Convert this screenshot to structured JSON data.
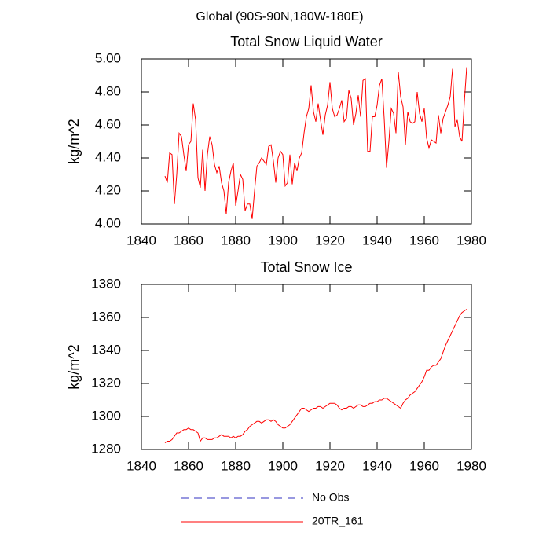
{
  "title": "Global (90S-90N,180W-180E)",
  "chart_data": [
    {
      "type": "line",
      "title": "Total Snow Liquid Water",
      "ylabel": "kg/m^2",
      "x": [
        1850,
        1851,
        1852,
        1853,
        1854,
        1855,
        1856,
        1857,
        1858,
        1859,
        1860,
        1861,
        1862,
        1863,
        1864,
        1865,
        1866,
        1867,
        1868,
        1869,
        1870,
        1871,
        1872,
        1873,
        1874,
        1875,
        1876,
        1877,
        1878,
        1879,
        1880,
        1881,
        1882,
        1883,
        1884,
        1885,
        1886,
        1887,
        1888,
        1889,
        1890,
        1891,
        1892,
        1893,
        1894,
        1895,
        1896,
        1897,
        1898,
        1899,
        1900,
        1901,
        1902,
        1903,
        1904,
        1905,
        1906,
        1907,
        1908,
        1909,
        1910,
        1911,
        1912,
        1913,
        1914,
        1915,
        1916,
        1917,
        1918,
        1919,
        1920,
        1921,
        1922,
        1923,
        1924,
        1925,
        1926,
        1927,
        1928,
        1929,
        1930,
        1931,
        1932,
        1933,
        1934,
        1935,
        1936,
        1937,
        1938,
        1939,
        1940,
        1941,
        1942,
        1943,
        1944,
        1945,
        1946,
        1947,
        1948,
        1949,
        1950,
        1951,
        1952,
        1953,
        1954,
        1955,
        1956,
        1957,
        1958,
        1959,
        1960,
        1961,
        1962,
        1963,
        1964,
        1965,
        1966,
        1967,
        1968,
        1969,
        1970,
        1971,
        1972,
        1973,
        1974,
        1975,
        1976,
        1977,
        1978
      ],
      "series": [
        {
          "color": "#ff0000",
          "values": [
            4.29,
            4.25,
            4.43,
            4.42,
            4.12,
            4.3,
            4.55,
            4.53,
            4.42,
            4.32,
            4.48,
            4.5,
            4.73,
            4.63,
            4.28,
            4.22,
            4.45,
            4.2,
            4.42,
            4.53,
            4.48,
            4.36,
            4.31,
            4.35,
            4.25,
            4.2,
            4.06,
            4.25,
            4.32,
            4.37,
            4.11,
            4.2,
            4.3,
            4.27,
            4.08,
            4.12,
            4.12,
            4.03,
            4.2,
            4.35,
            4.37,
            4.4,
            4.38,
            4.36,
            4.47,
            4.48,
            4.38,
            4.25,
            4.4,
            4.44,
            4.42,
            4.23,
            4.25,
            4.42,
            4.24,
            4.37,
            4.32,
            4.4,
            4.43,
            4.55,
            4.65,
            4.7,
            4.84,
            4.68,
            4.62,
            4.73,
            4.63,
            4.54,
            4.66,
            4.72,
            4.86,
            4.7,
            4.65,
            4.66,
            4.7,
            4.75,
            4.62,
            4.64,
            4.81,
            4.76,
            4.6,
            4.67,
            4.78,
            4.65,
            4.87,
            4.88,
            4.44,
            4.44,
            4.65,
            4.65,
            4.72,
            4.84,
            4.88,
            4.64,
            4.34,
            4.5,
            4.7,
            4.67,
            4.55,
            4.92,
            4.77,
            4.71,
            4.48,
            4.68,
            4.62,
            4.61,
            4.62,
            4.8,
            4.67,
            4.62,
            4.7,
            4.52,
            4.46,
            4.51,
            4.5,
            4.49,
            4.66,
            4.55,
            4.64,
            4.68,
            4.72,
            4.77,
            4.94,
            4.59,
            4.63,
            4.53,
            4.5,
            4.74,
            4.95
          ]
        }
      ],
      "xlim": [
        1840,
        1980
      ],
      "xticks": [
        1840,
        1860,
        1880,
        1900,
        1920,
        1940,
        1960,
        1980
      ],
      "ylim": [
        4,
        5
      ],
      "yticks": [
        {
          "value": 4,
          "label": "4.00"
        },
        {
          "value": 4.2,
          "label": "4.20"
        },
        {
          "value": 4.4,
          "label": "4.40"
        },
        {
          "value": 4.6,
          "label": "4.60"
        },
        {
          "value": 4.8,
          "label": "4.80"
        },
        {
          "value": 5,
          "label": "5.00"
        }
      ]
    },
    {
      "type": "line",
      "title": "Total Snow Ice",
      "ylabel": "kg/m^2",
      "x": [
        1850,
        1851,
        1852,
        1853,
        1854,
        1855,
        1856,
        1857,
        1858,
        1859,
        1860,
        1861,
        1862,
        1863,
        1864,
        1865,
        1866,
        1867,
        1868,
        1869,
        1870,
        1871,
        1872,
        1873,
        1874,
        1875,
        1876,
        1877,
        1878,
        1879,
        1880,
        1881,
        1882,
        1883,
        1884,
        1885,
        1886,
        1887,
        1888,
        1889,
        1890,
        1891,
        1892,
        1893,
        1894,
        1895,
        1896,
        1897,
        1898,
        1899,
        1900,
        1901,
        1902,
        1903,
        1904,
        1905,
        1906,
        1907,
        1908,
        1909,
        1910,
        1911,
        1912,
        1913,
        1914,
        1915,
        1916,
        1917,
        1918,
        1919,
        1920,
        1921,
        1922,
        1923,
        1924,
        1925,
        1926,
        1927,
        1928,
        1929,
        1930,
        1931,
        1932,
        1933,
        1934,
        1935,
        1936,
        1937,
        1938,
        1939,
        1940,
        1941,
        1942,
        1943,
        1944,
        1945,
        1946,
        1947,
        1948,
        1949,
        1950,
        1951,
        1952,
        1953,
        1954,
        1955,
        1956,
        1957,
        1958,
        1959,
        1960,
        1961,
        1962,
        1963,
        1964,
        1965,
        1966,
        1967,
        1968,
        1969,
        1970,
        1971,
        1972,
        1973,
        1974,
        1975,
        1976,
        1977,
        1978
      ],
      "series": [
        {
          "color": "#ff0000",
          "values": [
            1284,
            1285,
            1285,
            1286,
            1288,
            1290,
            1290,
            1291,
            1292,
            1292,
            1293,
            1292,
            1292,
            1291,
            1290,
            1285,
            1287,
            1287,
            1286,
            1286,
            1286,
            1287,
            1287,
            1288,
            1289,
            1288,
            1288,
            1288,
            1287,
            1288,
            1287,
            1288,
            1288,
            1289,
            1291,
            1292,
            1294,
            1295,
            1296,
            1297,
            1297,
            1296,
            1297,
            1298,
            1298,
            1297,
            1298,
            1297,
            1295,
            1294,
            1293,
            1293,
            1294,
            1295,
            1297,
            1299,
            1301,
            1303,
            1305,
            1305,
            1304,
            1303,
            1304,
            1305,
            1305,
            1306,
            1306,
            1305,
            1306,
            1307,
            1308,
            1308,
            1308,
            1307,
            1305,
            1304,
            1305,
            1305,
            1306,
            1306,
            1305,
            1306,
            1307,
            1307,
            1306,
            1306,
            1307,
            1308,
            1308,
            1309,
            1309,
            1310,
            1310,
            1311,
            1311,
            1310,
            1309,
            1308,
            1307,
            1306,
            1305,
            1308,
            1310,
            1311,
            1313,
            1314,
            1315,
            1317,
            1319,
            1321,
            1324,
            1328,
            1328,
            1330,
            1331,
            1331,
            1333,
            1335,
            1339,
            1343,
            1346,
            1349,
            1352,
            1355,
            1358,
            1361,
            1363,
            1364,
            1365
          ]
        }
      ],
      "xlim": [
        1840,
        1980
      ],
      "xticks": [
        1840,
        1860,
        1880,
        1900,
        1920,
        1940,
        1960,
        1980
      ],
      "ylim": [
        1280,
        1380
      ],
      "yticks": [
        1280,
        1300,
        1320,
        1340,
        1360,
        1380
      ]
    }
  ],
  "legend": [
    {
      "name": "No Obs",
      "color": "#3030c0",
      "dash": true
    },
    {
      "name": "20TR_161",
      "color": "#ff0000",
      "dash": false
    }
  ]
}
